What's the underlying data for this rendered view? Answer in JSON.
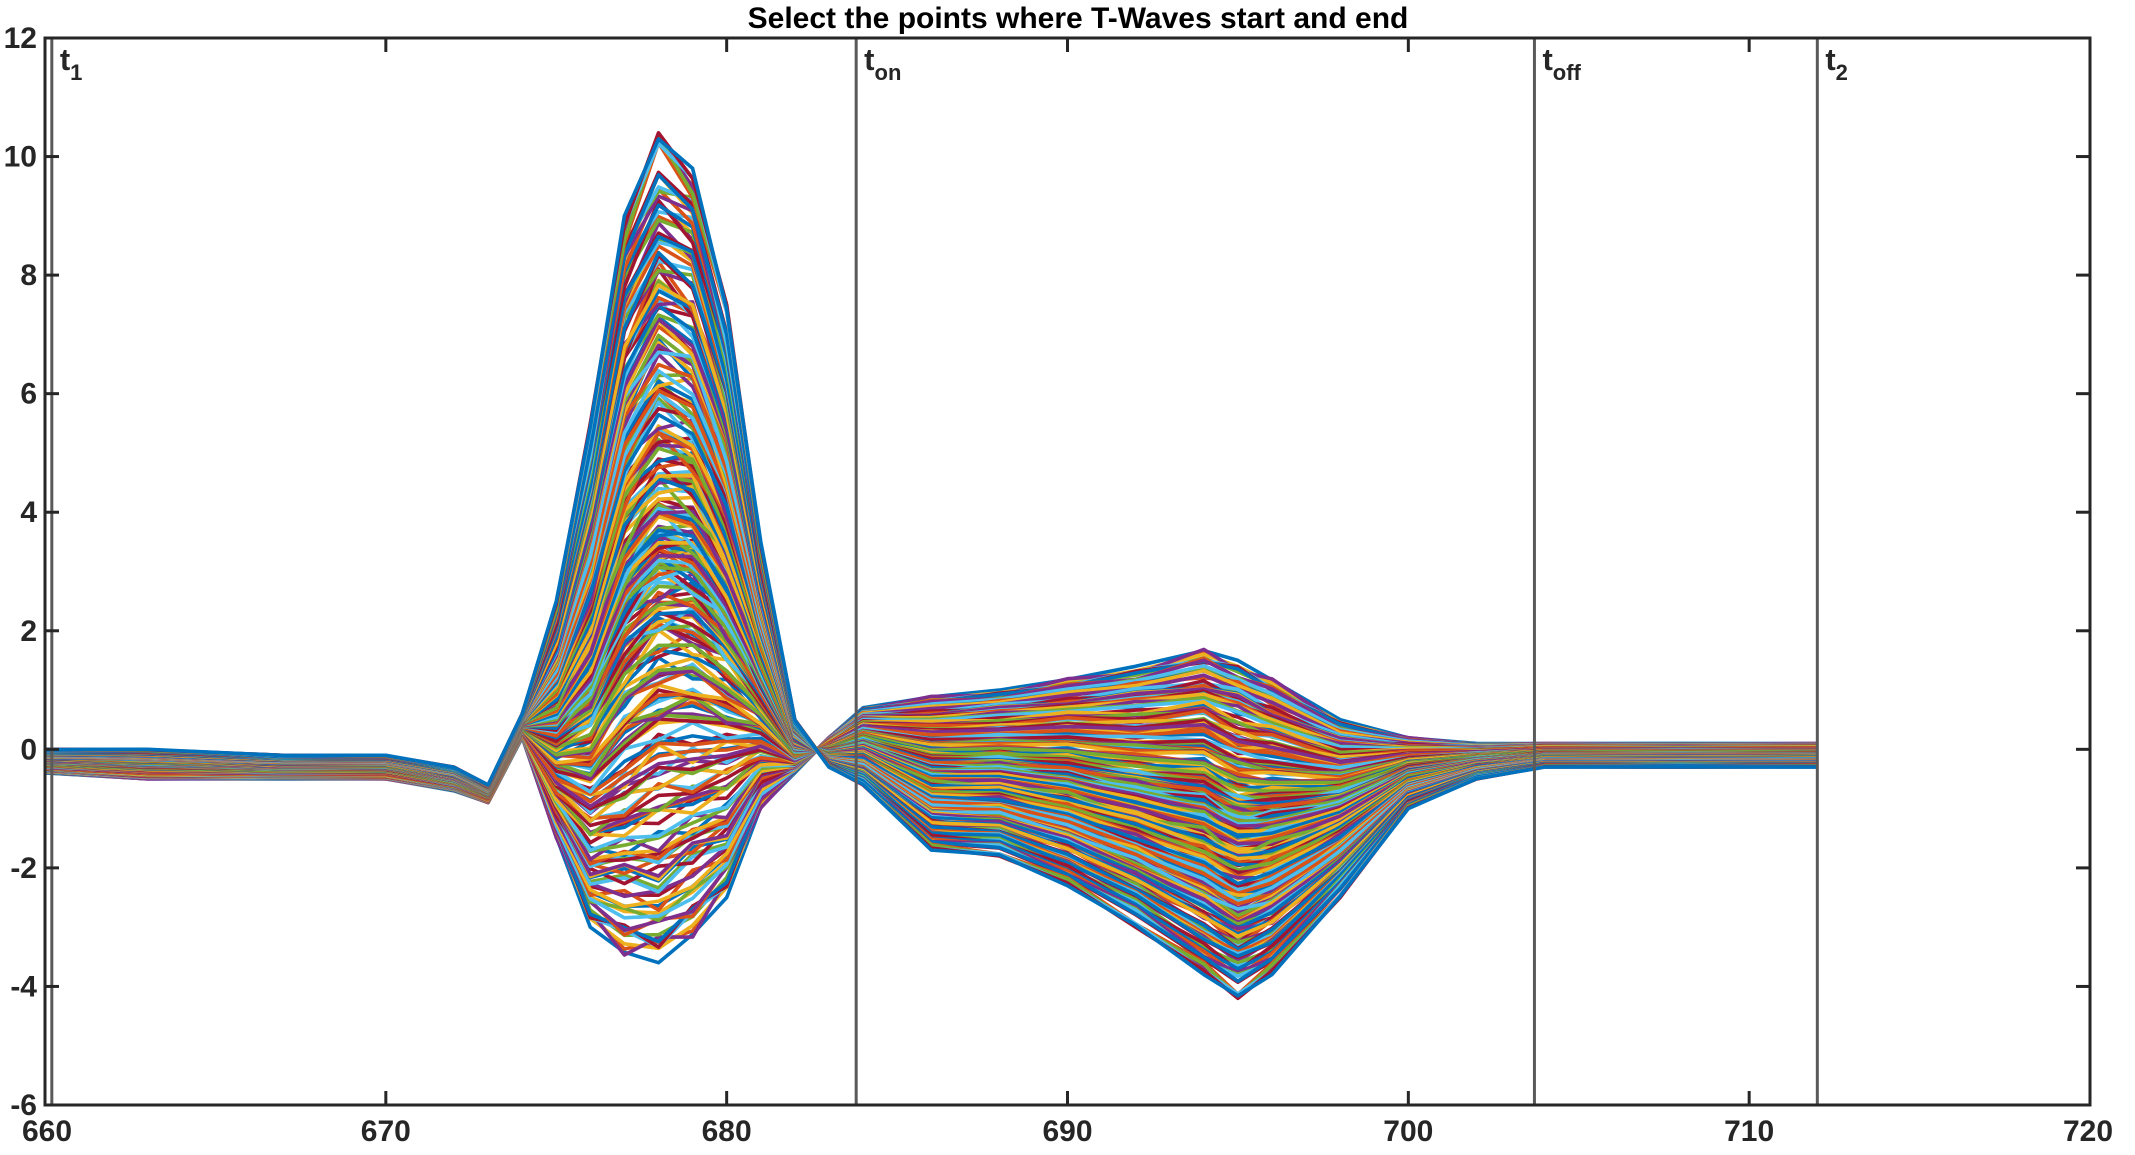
{
  "chart_data": {
    "type": "line",
    "title": "Select the points where T-Waves start and end",
    "xlabel": "",
    "ylabel": "",
    "xlim": [
      660,
      720
    ],
    "ylim": [
      -6,
      12
    ],
    "xticks": [
      660,
      670,
      680,
      690,
      700,
      710,
      720
    ],
    "yticks": [
      -6,
      -4,
      -2,
      0,
      2,
      4,
      6,
      8,
      10,
      12
    ],
    "grid": false,
    "legend": "none",
    "trace_count": 260,
    "trace_x_range": [
      660,
      712
    ],
    "series_colors": [
      "#0072BD",
      "#D95319",
      "#EDB120",
      "#7E2F8E",
      "#77AC30",
      "#4DBEEE",
      "#A2142F"
    ],
    "series_envelope": {
      "x": [
        660,
        663,
        667,
        670,
        672,
        673,
        674,
        675,
        676,
        677,
        678,
        679,
        680,
        681,
        682,
        683,
        684,
        686,
        688,
        690,
        692,
        694,
        695,
        696,
        698,
        700,
        702,
        704,
        708,
        712
      ],
      "max_trace": [
        0.0,
        0.0,
        -0.1,
        -0.1,
        -0.3,
        -0.6,
        0.6,
        2.5,
        5.5,
        9.0,
        10.4,
        9.8,
        7.5,
        3.5,
        0.5,
        -0.3,
        -0.6,
        -1.7,
        -1.8,
        -2.3,
        -3.0,
        -3.8,
        -4.2,
        -3.8,
        -2.5,
        -1.0,
        -0.5,
        -0.3,
        -0.3,
        -0.3
      ],
      "min_trace": [
        -0.4,
        -0.5,
        -0.5,
        -0.5,
        -0.7,
        -0.9,
        0.2,
        -1.5,
        -3.0,
        -3.5,
        -3.6,
        -3.2,
        -2.5,
        -1.0,
        -0.4,
        0.2,
        0.7,
        0.9,
        1.0,
        1.2,
        1.4,
        1.7,
        1.5,
        1.2,
        0.5,
        0.2,
        0.1,
        0.1,
        0.1,
        0.1
      ]
    },
    "markers": [
      {
        "name": "t1",
        "base": "t",
        "sub": "1",
        "x": 660.2
      },
      {
        "name": "ton",
        "base": "t",
        "sub": "on",
        "x": 683.8
      },
      {
        "name": "toff",
        "base": "t",
        "sub": "off",
        "x": 703.7
      },
      {
        "name": "t2",
        "base": "t",
        "sub": "2",
        "x": 712.0
      }
    ]
  }
}
